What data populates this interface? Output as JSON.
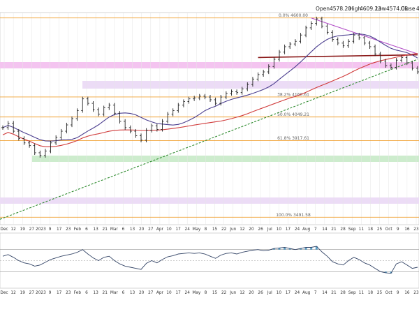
{
  "ohlc_header": {
    "open_label": "Open",
    "open_value": "4578.20",
    "high_label": "High",
    "high_value": "4609.23",
    "low_label": "Low",
    "low_value": "4574.06",
    "close_label": "Close",
    "close_value": "4"
  },
  "colors": {
    "price": "#222222",
    "ma50": "#4b3e8f",
    "ma200": "#d03a3a",
    "trend_up": "#2e8b2e",
    "trend_down": "#b24cc7",
    "resistance": "#8b1a1a",
    "fib": "#f0a030",
    "zone_magenta": "#f4c4f0",
    "zone_green": "#cdeccd",
    "zone_lilac": "#ecdcf6",
    "rsi_line": "#334466",
    "rsi_fill": "#5aa0c8"
  },
  "chart_data": [
    {
      "type": "line",
      "chart": "price",
      "price_axis_range": [
        3450,
        4630
      ],
      "series": [
        {
          "values": [
            3990,
            4015,
            3970,
            3930,
            3905,
            3890,
            3850,
            3835,
            3860,
            3905,
            3935,
            3970,
            4005,
            4040,
            4085,
            4150,
            4125,
            4090,
            4065,
            4100,
            4115,
            4070,
            4025,
            3990,
            3970,
            3945,
            3920,
            3975,
            4000,
            3980,
            4025,
            4065,
            4085,
            4115,
            4135,
            4150,
            4155,
            4165,
            4160,
            4145,
            4125,
            4160,
            4180,
            4190,
            4185,
            4205,
            4230,
            4260,
            4285,
            4300,
            4330,
            4370,
            4410,
            4440,
            4455,
            4470,
            4505,
            4545,
            4570,
            4595,
            4555,
            4520,
            4480,
            4460,
            4445,
            4470,
            4505,
            4490,
            4460,
            4440,
            4400,
            4360,
            4335,
            4325,
            4365,
            4380,
            4350,
            4320,
            4300
          ]
        }
      ],
      "annotations": {
        "fib_levels": [
          "0.0% 4600.00",
          "38.2% 4160.61",
          "50.0% 4049.21",
          "61.8% 3917.61",
          "100.0% 3491.58"
        ]
      },
      "x_tick_labels": [
        "Dec",
        "12",
        "19",
        "27",
        "2023",
        "9",
        "17",
        "23",
        "Feb",
        "6",
        "13",
        "21",
        "Mar",
        "6",
        "13",
        "20",
        "27",
        "Apr",
        "10",
        "17",
        "24",
        "May",
        "8",
        "15",
        "22",
        "Jun",
        "12",
        "20",
        "26",
        "Jul",
        "10",
        "17",
        "24",
        "Aug",
        "7",
        "14",
        "21",
        "28",
        "Sep",
        "11",
        "18",
        "25",
        "Oct",
        "9",
        "16",
        "23"
      ]
    },
    {
      "type": "line",
      "chart": "rsi",
      "y_range": [
        0,
        100
      ],
      "guide_levels": [
        70,
        50,
        30
      ],
      "series": [
        {
          "values": [
            58,
            61,
            56,
            50,
            46,
            44,
            40,
            42,
            47,
            52,
            55,
            58,
            60,
            62,
            65,
            70,
            62,
            55,
            50,
            56,
            58,
            50,
            44,
            40,
            38,
            36,
            34,
            45,
            50,
            46,
            52,
            57,
            59,
            62,
            63,
            64,
            63,
            64,
            62,
            58,
            54,
            60,
            63,
            64,
            62,
            65,
            67,
            69,
            70,
            68,
            69,
            72,
            73,
            74,
            72,
            70,
            72,
            74,
            74,
            76,
            66,
            58,
            48,
            44,
            42,
            50,
            56,
            52,
            46,
            42,
            36,
            30,
            28,
            27,
            44,
            48,
            42,
            36,
            38
          ]
        }
      ],
      "x_tick_labels": [
        "Dec",
        "12",
        "19",
        "27",
        "2023",
        "9",
        "17",
        "23",
        "Feb",
        "6",
        "13",
        "21",
        "Mar",
        "6",
        "13",
        "20",
        "27",
        "Apr",
        "10",
        "17",
        "24",
        "May",
        "8",
        "15",
        "22",
        "Jun",
        "12",
        "20",
        "26",
        "Jul",
        "10",
        "17",
        "24",
        "Aug",
        "7",
        "14",
        "21",
        "28",
        "Sep",
        "11",
        "18",
        "25",
        "Oct",
        "9",
        "16",
        "23"
      ]
    }
  ]
}
